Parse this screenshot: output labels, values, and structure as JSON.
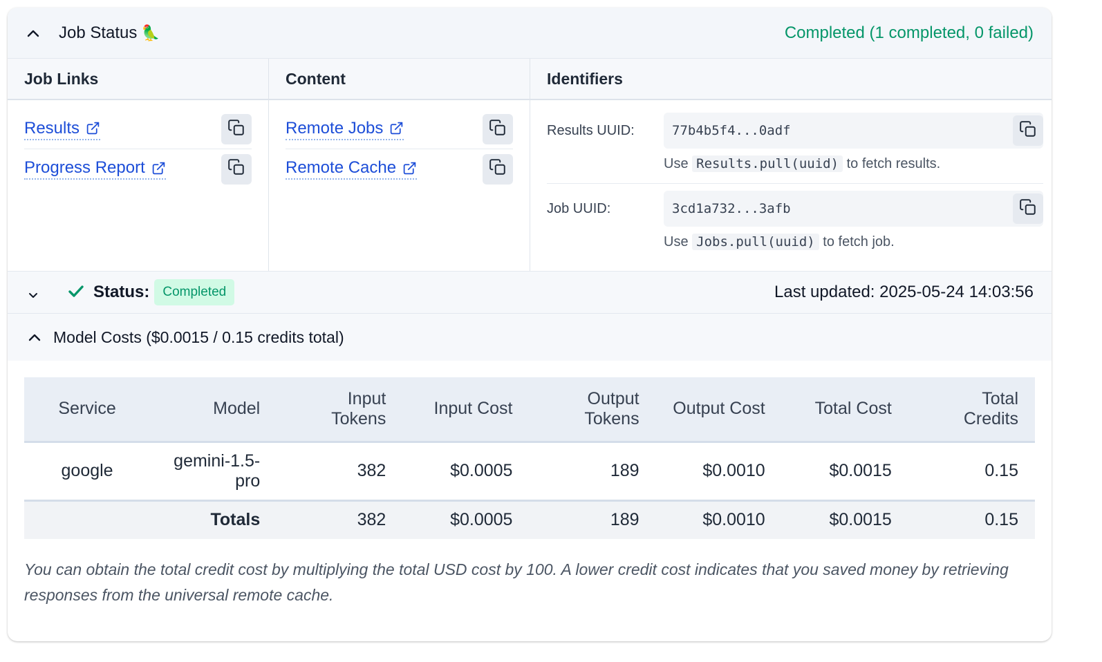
{
  "header": {
    "title": "Job Status",
    "emoji": "🦜",
    "status": "Completed (1 completed, 0 failed)"
  },
  "columns": {
    "job_links": {
      "heading": "Job Links",
      "links": [
        {
          "label": "Results"
        },
        {
          "label": "Progress Report"
        }
      ]
    },
    "content": {
      "heading": "Content",
      "links": [
        {
          "label": "Remote Jobs"
        },
        {
          "label": "Remote Cache"
        }
      ]
    },
    "identifiers": {
      "heading": "Identifiers",
      "results": {
        "label": "Results UUID:",
        "value": "77b4b5f4...0adf",
        "help_prefix": "Use",
        "help_code": "Results.pull(uuid)",
        "help_suffix": "to fetch results."
      },
      "job": {
        "label": "Job UUID:",
        "value": "3cd1a732...3afb",
        "help_prefix": "Use",
        "help_code": "Jobs.pull(uuid)",
        "help_suffix": "to fetch job."
      }
    }
  },
  "status_bar": {
    "label": "Status:",
    "badge": "Completed",
    "last_updated": "Last updated: 2025-05-24 14:03:56"
  },
  "model_costs": {
    "heading": "Model Costs ($0.0015 / 0.15 credits total)",
    "columns": [
      "Service",
      "Model",
      "Input Tokens",
      "Input Cost",
      "Output Tokens",
      "Output Cost",
      "Total Cost",
      "Total Credits"
    ],
    "rows": [
      {
        "service": "google",
        "model": "gemini-1.5-pro",
        "input_tokens": "382",
        "input_cost": "$0.0005",
        "output_tokens": "189",
        "output_cost": "$0.0010",
        "total_cost": "$0.0015",
        "total_credits": "0.15"
      }
    ],
    "totals": {
      "label": "Totals",
      "input_tokens": "382",
      "input_cost": "$0.0005",
      "output_tokens": "189",
      "output_cost": "$0.0010",
      "total_cost": "$0.0015",
      "total_credits": "0.15"
    },
    "note": "You can obtain the total credit cost by multiplying the total USD cost by 100. A lower credit cost indicates that you saved money by retrieving responses from the universal remote cache."
  },
  "colors": {
    "accent_green": "#059669",
    "link_blue": "#1d4ed8",
    "badge_bg": "#d1fae5"
  },
  "icons": [
    "chevron-up-icon",
    "external-link-icon",
    "copy-icon",
    "chevron-down-icon",
    "check-icon"
  ]
}
